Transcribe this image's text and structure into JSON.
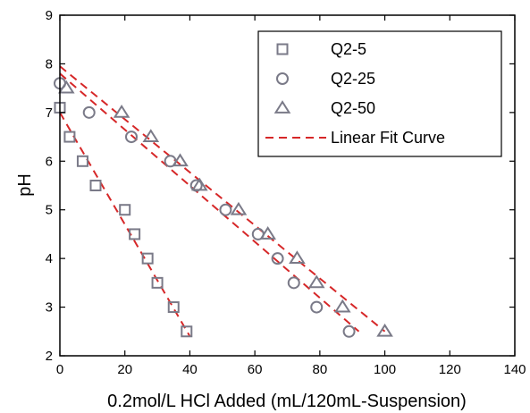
{
  "chart_data": {
    "type": "scatter",
    "title": "",
    "xlabel": "0.2mol/L HCl Added (mL/120mL-Suspension)",
    "ylabel": "pH",
    "xlim": [
      0,
      140
    ],
    "ylim": [
      2,
      9
    ],
    "xticks": [
      0,
      20,
      40,
      60,
      80,
      100,
      120,
      140
    ],
    "yticks": [
      2,
      3,
      4,
      5,
      6,
      7,
      8,
      9
    ],
    "grid": false,
    "legend_position": "top-right",
    "marker_color": "#7a7a88",
    "fit_color": "#d62728",
    "series": [
      {
        "name": "Q2-5",
        "marker": "square",
        "points": [
          [
            0,
            7.1
          ],
          [
            3,
            6.5
          ],
          [
            7,
            6.0
          ],
          [
            11,
            5.5
          ],
          [
            20,
            5.0
          ],
          [
            23,
            4.5
          ],
          [
            27,
            4.0
          ],
          [
            30,
            3.5
          ],
          [
            35,
            3.0
          ],
          [
            39,
            2.5
          ]
        ]
      },
      {
        "name": "Q2-25",
        "marker": "circle",
        "points": [
          [
            0,
            7.6
          ],
          [
            9,
            7.0
          ],
          [
            22,
            6.5
          ],
          [
            34,
            6.0
          ],
          [
            42,
            5.5
          ],
          [
            51,
            5.0
          ],
          [
            61,
            4.5
          ],
          [
            67,
            4.0
          ],
          [
            72,
            3.5
          ],
          [
            79,
            3.0
          ],
          [
            89,
            2.5
          ]
        ]
      },
      {
        "name": "Q2-50",
        "marker": "triangle",
        "points": [
          [
            2,
            7.5
          ],
          [
            19,
            7.0
          ],
          [
            28,
            6.5
          ],
          [
            37,
            6.0
          ],
          [
            43,
            5.5
          ],
          [
            55,
            5.0
          ],
          [
            64,
            4.5
          ],
          [
            73,
            4.0
          ],
          [
            79,
            3.5
          ],
          [
            87,
            3.0
          ],
          [
            100,
            2.5
          ]
        ]
      }
    ],
    "fit_lines": [
      {
        "name": "Linear Fit Curve",
        "series": "Q2-5",
        "x": [
          0,
          40
        ],
        "y": [
          7.0,
          2.4
        ]
      },
      {
        "name": "Linear Fit Curve",
        "series": "Q2-25",
        "x": [
          0,
          92
        ],
        "y": [
          7.8,
          2.5
        ]
      },
      {
        "name": "Linear Fit Curve",
        "series": "Q2-50",
        "x": [
          0,
          100
        ],
        "y": [
          7.95,
          2.5
        ]
      }
    ],
    "legend": [
      "Q2-5",
      "Q2-25",
      "Q2-50",
      "Linear Fit Curve"
    ]
  }
}
